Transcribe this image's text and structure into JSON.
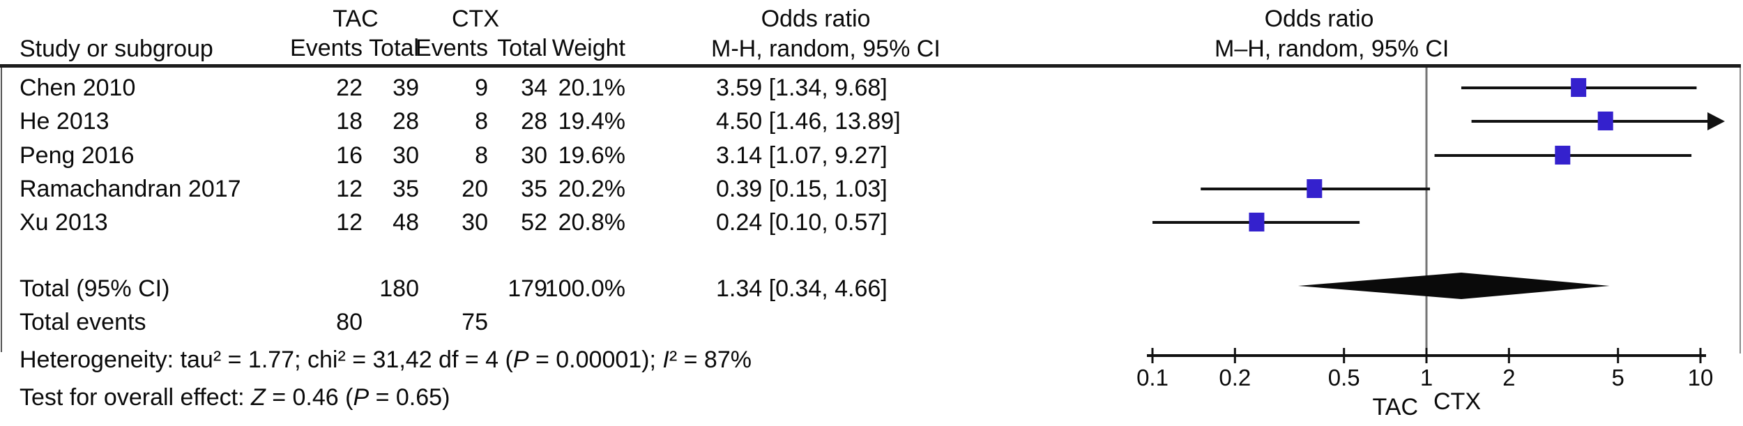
{
  "colors": {
    "marker_square": "#3421cd",
    "ci_line": "#111111",
    "null_line": "#757575",
    "axis": "#111111",
    "text": "#0a0a0a"
  },
  "header": {
    "study_col": "Study or subgroup",
    "group1": "TAC",
    "group2": "CTX",
    "events": "Events",
    "total": "Total",
    "weight": "Weight",
    "or_title": "Odds ratio",
    "or_subtitle": "M-H, random, 95% CI",
    "plot_title": "Odds ratio",
    "plot_subtitle": "M–H, random, 95% CI"
  },
  "table": {
    "rows": [
      {
        "study": "Chen 2010",
        "tac_events": "22",
        "tac_total": "39",
        "ctx_events": "9",
        "ctx_total": "34",
        "weight": "20.1%",
        "or_ci": "3.59 [1.34, 9.68]"
      },
      {
        "study": "He 2013",
        "tac_events": "18",
        "tac_total": "28",
        "ctx_events": "8",
        "ctx_total": "28",
        "weight": "19.4%",
        "or_ci": "4.50 [1.46, 13.89]"
      },
      {
        "study": "Peng 2016",
        "tac_events": "16",
        "tac_total": "30",
        "ctx_events": "8",
        "ctx_total": "30",
        "weight": "19.6%",
        "or_ci": "3.14 [1.07, 9.27]"
      },
      {
        "study": "Ramachandran 2017",
        "tac_events": "12",
        "tac_total": "35",
        "ctx_events": "20",
        "ctx_total": "35",
        "weight": "20.2%",
        "or_ci": "0.39 [0.15, 1.03]"
      },
      {
        "study": "Xu 2013",
        "tac_events": "12",
        "tac_total": "48",
        "ctx_events": "30",
        "ctx_total": "52",
        "weight": "20.8%",
        "or_ci": "0.24 [0.10, 0.57]"
      }
    ],
    "total_row": {
      "label": "Total (95% CI)",
      "tac_total": "180",
      "ctx_total": "179",
      "weight": "100.0%",
      "or_ci": "1.34 [0.34, 4.66]"
    },
    "total_events": {
      "label": "Total events",
      "tac": "80",
      "ctx": "75"
    }
  },
  "footer": {
    "heterogeneity": "Heterogeneity: tau² = 1.77; chi² = 31,42 df = 4 (P = 0.00001); I² = 87%",
    "overall_effect": "Test for overall effect: Z = 0.46 (P = 0.65)"
  },
  "chart_data": {
    "type": "forest",
    "x_scale": "log10",
    "x_min": 0.1,
    "x_max": 10,
    "x_ticks": [
      0.1,
      0.2,
      0.5,
      1,
      2,
      5,
      10
    ],
    "null_line": 1,
    "axis_left_label": "TAC",
    "axis_right_label": "CTX",
    "studies": [
      {
        "name": "Chen 2010",
        "or": 3.59,
        "ci_low": 1.34,
        "ci_high": 9.68,
        "weight_pct": 20.1
      },
      {
        "name": "He 2013",
        "or": 4.5,
        "ci_low": 1.46,
        "ci_high": 13.89,
        "weight_pct": 19.4
      },
      {
        "name": "Peng 2016",
        "or": 3.14,
        "ci_low": 1.07,
        "ci_high": 9.27,
        "weight_pct": 19.6
      },
      {
        "name": "Ramachandran 2017",
        "or": 0.39,
        "ci_low": 0.15,
        "ci_high": 1.03,
        "weight_pct": 20.2
      },
      {
        "name": "Xu 2013",
        "or": 0.24,
        "ci_low": 0.1,
        "ci_high": 0.57,
        "weight_pct": 20.8
      }
    ],
    "total": {
      "or": 1.34,
      "ci_low": 0.34,
      "ci_high": 4.66
    }
  }
}
